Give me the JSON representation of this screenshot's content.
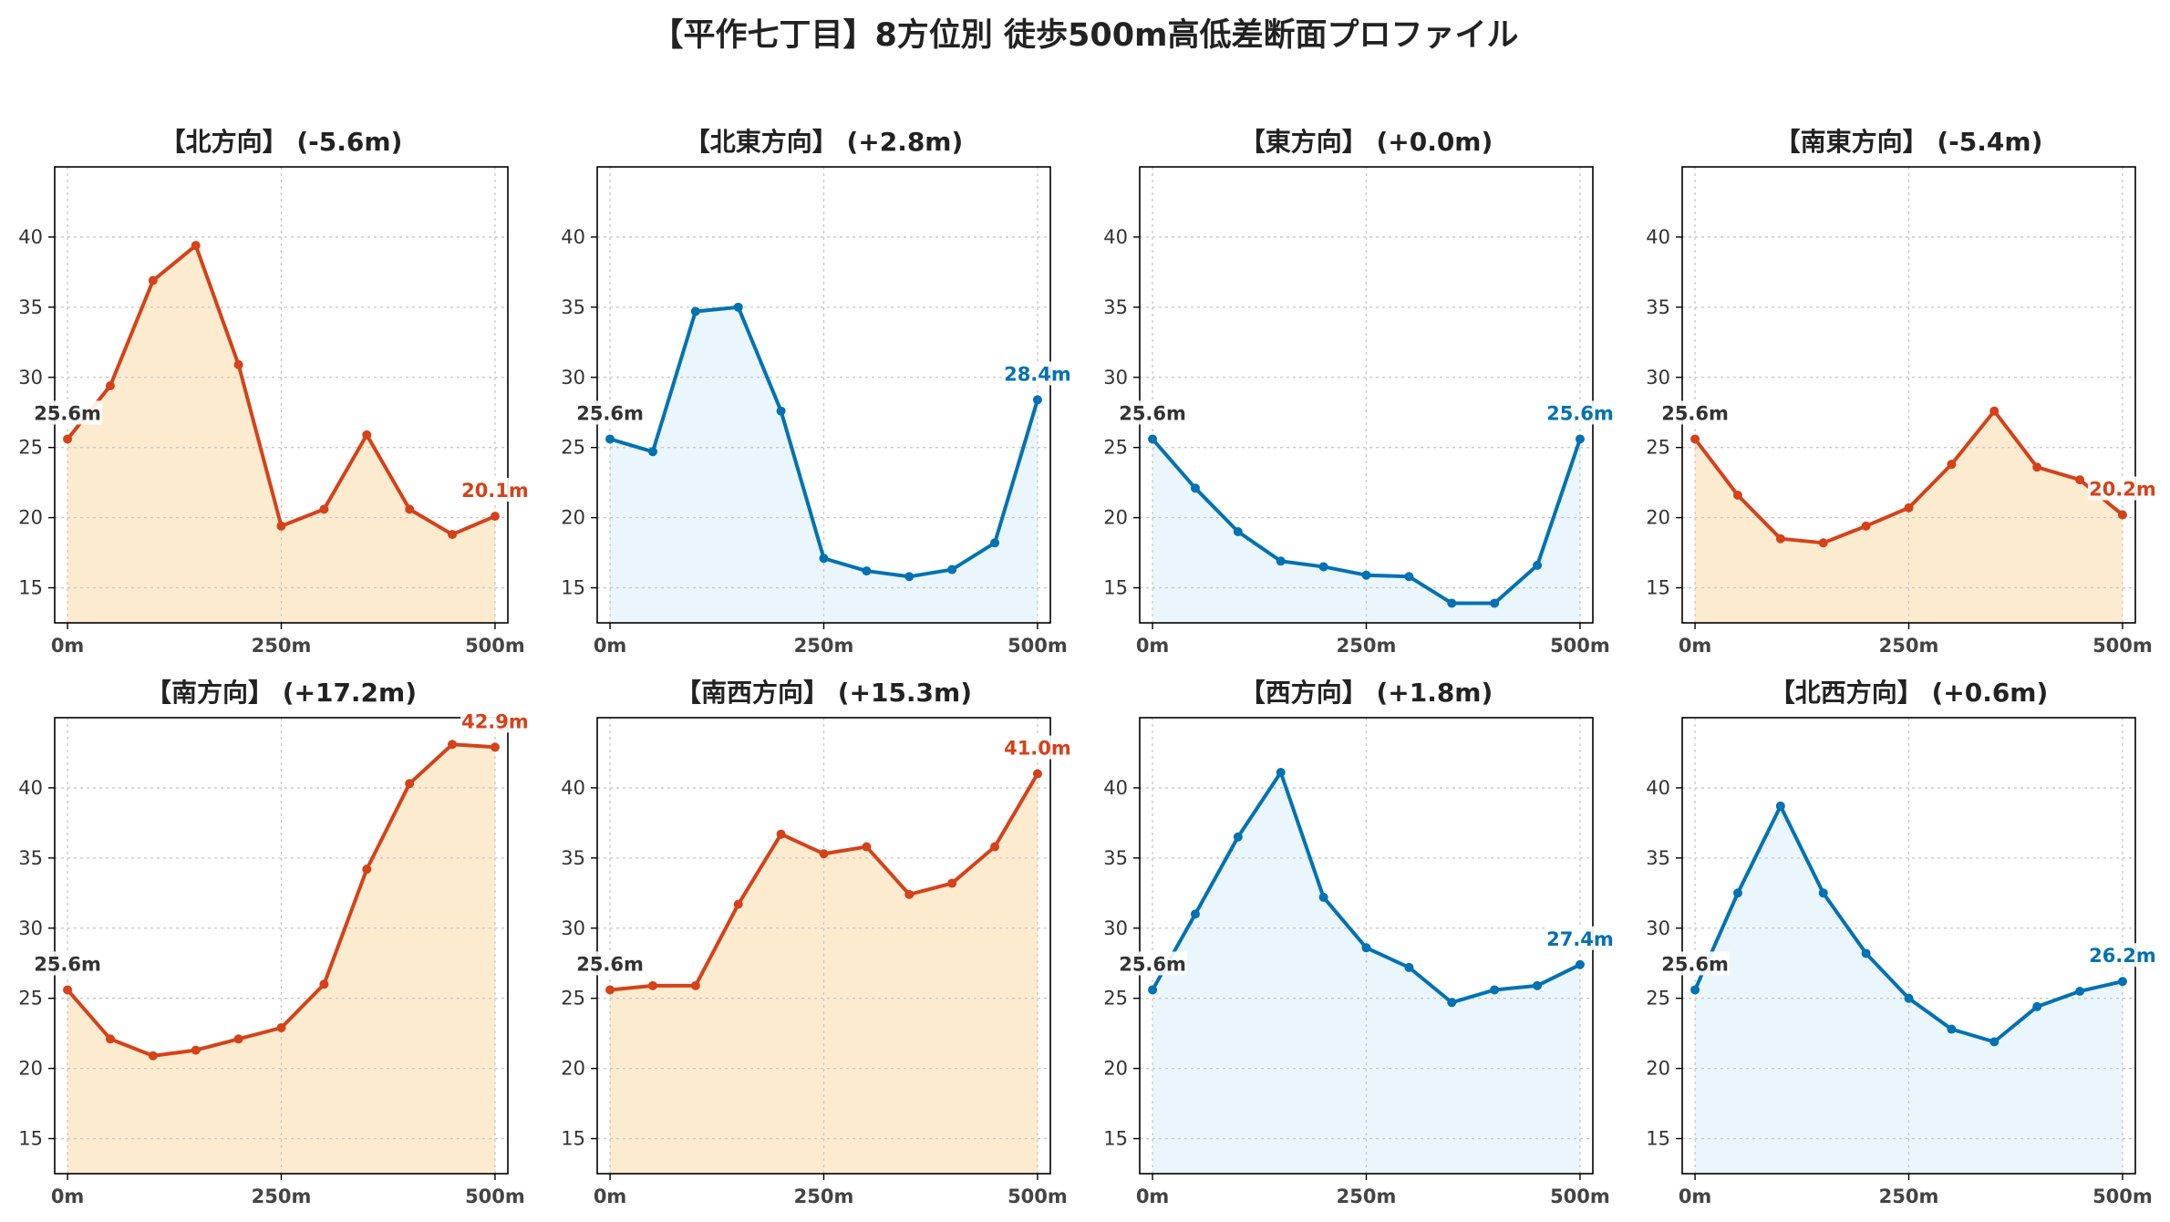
{
  "figure": {
    "title": "【平作七丁目】8方位別 徒歩500m高低差断面プロファイル"
  },
  "colors": {
    "down_line": "#0072B2",
    "down_fill": "#EAF6FB",
    "up_line": "#D5421A",
    "up_fill": "#FDEBD0",
    "start_label": "#333333",
    "grid": "#C8C8C8"
  },
  "chart_data": [
    {
      "type": "area",
      "title": "【北方向】 (-5.6m)",
      "trend": "up",
      "x": [
        0,
        50,
        100,
        150,
        200,
        250,
        300,
        350,
        400,
        450,
        500
      ],
      "y": [
        25.6,
        29.4,
        36.9,
        39.4,
        30.9,
        19.4,
        20.6,
        25.9,
        20.6,
        18.8,
        20.1
      ],
      "start_label": "25.6m",
      "end_label": "20.1m",
      "xticks": [
        "0m",
        "250m",
        "500m"
      ],
      "yticks": [
        15,
        20,
        25,
        30,
        35,
        40
      ],
      "xlim": [
        -15,
        515
      ],
      "ylim": [
        12.5,
        45
      ],
      "grid": true
    },
    {
      "type": "area",
      "title": "【北東方向】 (+2.8m)",
      "trend": "down",
      "x": [
        0,
        50,
        100,
        150,
        200,
        250,
        300,
        350,
        400,
        450,
        500
      ],
      "y": [
        25.6,
        24.7,
        34.7,
        35.0,
        27.6,
        17.1,
        16.2,
        15.8,
        16.3,
        18.2,
        28.4
      ],
      "start_label": "25.6m",
      "end_label": "28.4m",
      "xticks": [
        "0m",
        "250m",
        "500m"
      ],
      "yticks": [
        15,
        20,
        25,
        30,
        35,
        40
      ],
      "xlim": [
        -15,
        515
      ],
      "ylim": [
        12.5,
        45
      ],
      "grid": true
    },
    {
      "type": "area",
      "title": "【東方向】 (+0.0m)",
      "trend": "down",
      "x": [
        0,
        50,
        100,
        150,
        200,
        250,
        300,
        350,
        400,
        450,
        500
      ],
      "y": [
        25.6,
        22.1,
        19.0,
        16.9,
        16.5,
        15.9,
        15.8,
        13.9,
        13.9,
        16.6,
        25.6
      ],
      "start_label": "25.6m",
      "end_label": "25.6m",
      "xticks": [
        "0m",
        "250m",
        "500m"
      ],
      "yticks": [
        15,
        20,
        25,
        30,
        35,
        40
      ],
      "xlim": [
        -15,
        515
      ],
      "ylim": [
        12.5,
        45
      ],
      "grid": true
    },
    {
      "type": "area",
      "title": "【南東方向】 (-5.4m)",
      "trend": "up",
      "x": [
        0,
        50,
        100,
        150,
        200,
        250,
        300,
        350,
        400,
        450,
        500
      ],
      "y": [
        25.6,
        21.6,
        18.5,
        18.2,
        19.4,
        20.7,
        23.8,
        27.6,
        23.6,
        22.7,
        20.2
      ],
      "start_label": "25.6m",
      "end_label": "20.2m",
      "xticks": [
        "0m",
        "250m",
        "500m"
      ],
      "yticks": [
        15,
        20,
        25,
        30,
        35,
        40
      ],
      "xlim": [
        -15,
        515
      ],
      "ylim": [
        12.5,
        45
      ],
      "grid": true
    },
    {
      "type": "area",
      "title": "【南方向】 (+17.2m)",
      "trend": "up",
      "x": [
        0,
        50,
        100,
        150,
        200,
        250,
        300,
        350,
        400,
        450,
        500
      ],
      "y": [
        25.6,
        22.1,
        20.9,
        21.3,
        22.1,
        22.9,
        26.0,
        34.2,
        40.3,
        43.1,
        42.9
      ],
      "start_label": "25.6m",
      "end_label": "42.9m",
      "xticks": [
        "0m",
        "250m",
        "500m"
      ],
      "yticks": [
        15,
        20,
        25,
        30,
        35,
        40
      ],
      "xlim": [
        -15,
        515
      ],
      "ylim": [
        12.5,
        45
      ],
      "grid": true
    },
    {
      "type": "area",
      "title": "【南西方向】 (+15.3m)",
      "trend": "up",
      "x": [
        0,
        50,
        100,
        150,
        200,
        250,
        300,
        350,
        400,
        450,
        500
      ],
      "y": [
        25.6,
        25.9,
        25.9,
        31.7,
        36.7,
        35.3,
        35.8,
        32.4,
        33.2,
        35.8,
        41.0
      ],
      "start_label": "25.6m",
      "end_label": "41.0m",
      "xticks": [
        "0m",
        "250m",
        "500m"
      ],
      "yticks": [
        15,
        20,
        25,
        30,
        35,
        40
      ],
      "xlim": [
        -15,
        515
      ],
      "ylim": [
        12.5,
        45
      ],
      "grid": true
    },
    {
      "type": "area",
      "title": "【西方向】 (+1.8m)",
      "trend": "down",
      "x": [
        0,
        50,
        100,
        150,
        200,
        250,
        300,
        350,
        400,
        450,
        500
      ],
      "y": [
        25.6,
        31.0,
        36.5,
        41.1,
        32.2,
        28.6,
        27.2,
        24.7,
        25.6,
        25.9,
        27.4
      ],
      "start_label": "25.6m",
      "end_label": "27.4m",
      "xticks": [
        "0m",
        "250m",
        "500m"
      ],
      "yticks": [
        15,
        20,
        25,
        30,
        35,
        40
      ],
      "xlim": [
        -15,
        515
      ],
      "ylim": [
        12.5,
        45
      ],
      "grid": true
    },
    {
      "type": "area",
      "title": "【北西方向】 (+0.6m)",
      "trend": "down",
      "x": [
        0,
        50,
        100,
        150,
        200,
        250,
        300,
        350,
        400,
        450,
        500
      ],
      "y": [
        25.6,
        32.5,
        38.7,
        32.5,
        28.2,
        25.0,
        22.8,
        21.9,
        24.4,
        25.5,
        26.2
      ],
      "start_label": "25.6m",
      "end_label": "26.2m",
      "xticks": [
        "0m",
        "250m",
        "500m"
      ],
      "yticks": [
        15,
        20,
        25,
        30,
        35,
        40
      ],
      "xlim": [
        -15,
        515
      ],
      "ylim": [
        12.5,
        45
      ],
      "grid": true
    }
  ]
}
